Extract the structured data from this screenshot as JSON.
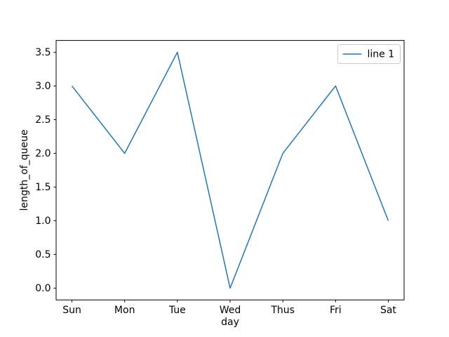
{
  "chart_data": {
    "type": "line",
    "title": "",
    "xlabel": "day",
    "ylabel": "length_of_queue",
    "categories": [
      "Sun",
      "Mon",
      "Tue",
      "Wed",
      "Thus",
      "Fri",
      "Sat"
    ],
    "series": [
      {
        "name": "line 1",
        "color": "#1f77b4",
        "values": [
          3.0,
          2.0,
          3.5,
          0.0,
          2.0,
          3.0,
          1.0
        ]
      }
    ],
    "xlim": [
      -0.3,
      6.3
    ],
    "ylim": [
      -0.175,
      3.675
    ],
    "y_ticks": [
      0.0,
      0.5,
      1.0,
      1.5,
      2.0,
      2.5,
      3.0,
      3.5
    ],
    "y_tick_labels": [
      "0.0",
      "0.5",
      "1.0",
      "1.5",
      "2.0",
      "2.5",
      "3.0",
      "3.5"
    ],
    "grid": false,
    "legend": {
      "visible": true,
      "position": "upper-right",
      "entries": [
        "line 1"
      ],
      "border_color": "#cccccc"
    },
    "spine_color": "#000000",
    "background_color": "#ffffff"
  }
}
